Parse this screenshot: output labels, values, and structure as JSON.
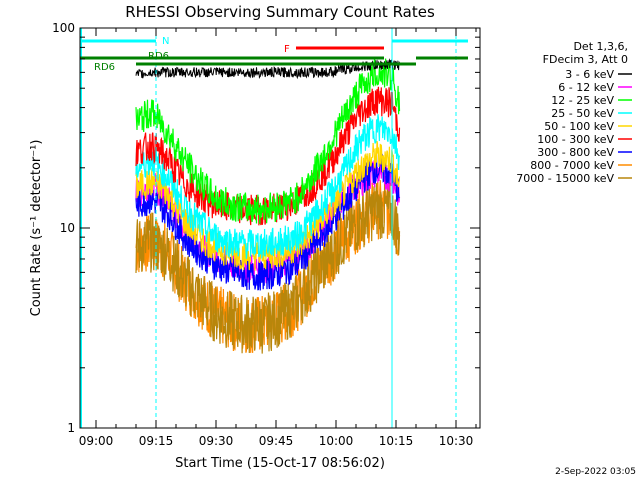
{
  "chart_data": {
    "type": "line",
    "title": "RHESSI Observing Summary Count Rates",
    "xlabel": "Start Time (15-Oct-17 08:56:02)",
    "ylabel": "Count Rate (s⁻¹ detector⁻¹)",
    "y_scale": "log",
    "x_range_minutes": [
      -4,
      36
    ],
    "x_tick_minutes": [
      0,
      15,
      30,
      45,
      60,
      75,
      90
    ],
    "x_tick_labels": [
      "09:00",
      "09:15",
      "09:30",
      "09:45",
      "10:00",
      "10:15",
      "10:30"
    ],
    "ylim": [
      1,
      100
    ],
    "y_tick_values": [
      1,
      10,
      100
    ],
    "y_tick_labels": [
      "1",
      "10",
      "100"
    ],
    "grid": false,
    "legend": {
      "placement": "right",
      "header": [
        "Det 1,3,6,",
        "FDecim 3, Att 0"
      ]
    },
    "data_window": {
      "start": "09:10",
      "end": "10:16"
    },
    "x_time_axis": [
      "09:10",
      "09:14",
      "09:18",
      "09:22",
      "09:26",
      "09:30",
      "09:34",
      "09:38",
      "09:42",
      "09:46",
      "09:50",
      "09:54",
      "09:58",
      "10:02",
      "10:06",
      "10:10",
      "10:14",
      "10:16"
    ],
    "series": [
      {
        "name": "3 - 6 keV",
        "color": "#000000",
        "values": [
          58,
          60,
          60,
          60,
          60,
          60,
          60,
          60,
          60,
          60,
          60,
          60,
          60,
          62,
          64,
          65,
          66,
          64
        ]
      },
      {
        "name": "6 - 12 keV",
        "color": "#ff00ff",
        "values": [
          15,
          16,
          14,
          10,
          8,
          7,
          6.5,
          6.3,
          6.3,
          6.5,
          7,
          8.5,
          11,
          14,
          17,
          19,
          18,
          14
        ]
      },
      {
        "name": "12 - 25 keV",
        "color": "#00ff00",
        "values": [
          34,
          38,
          30,
          22,
          17,
          14,
          13,
          12.5,
          12.5,
          13,
          14,
          18,
          25,
          36,
          50,
          60,
          58,
          40
        ]
      },
      {
        "name": "25 - 50 keV",
        "color": "#00ffff",
        "values": [
          20,
          22,
          18,
          13,
          10.5,
          9,
          8.5,
          8.3,
          8.3,
          8.5,
          9,
          11,
          14,
          19,
          27,
          32,
          30,
          22
        ]
      },
      {
        "name": "50 - 100 keV",
        "color": "#ffd700",
        "values": [
          16,
          17,
          15,
          11,
          9,
          8,
          7.5,
          7.3,
          7.3,
          7.5,
          8,
          9.5,
          12,
          15,
          20,
          23,
          22,
          16
        ]
      },
      {
        "name": "100 - 300 keV",
        "color": "#ff0000",
        "values": [
          24,
          26,
          22,
          17,
          14.5,
          13,
          12.5,
          12.3,
          12.3,
          12.5,
          13.5,
          16,
          20,
          28,
          38,
          44,
          42,
          30
        ]
      },
      {
        "name": "300 - 800 keV",
        "color": "#0000ff",
        "values": [
          13,
          14,
          12,
          9,
          7.5,
          6.5,
          6,
          5.8,
          5.8,
          6,
          6.5,
          8,
          10,
          13,
          17,
          20,
          19,
          14
        ]
      },
      {
        "name": "800 - 7000 keV",
        "color": "#ff8c00",
        "values": [
          8,
          8.5,
          7.5,
          5.5,
          4.5,
          3.7,
          3.4,
          3.3,
          3.3,
          3.6,
          4.2,
          5.5,
          7,
          9,
          11,
          12.5,
          12,
          9
        ]
      },
      {
        "name": "7000 - 15000 keV",
        "color": "#b8860b",
        "values": [
          8,
          8.5,
          7.5,
          5.5,
          4.5,
          3.7,
          3.4,
          3.3,
          3.3,
          3.6,
          4.2,
          5.5,
          7,
          9,
          11,
          12.5,
          12,
          9
        ]
      }
    ],
    "annotations": {
      "night_marker_label": "N",
      "night_bar_color": "#00ffff",
      "night_intervals": [
        [
          "08:56",
          "09:15"
        ],
        [
          "10:14",
          "10:33"
        ]
      ],
      "saa_boundary_times": [
        "09:15",
        "10:30"
      ],
      "dashed_line_color": "#00ffff",
      "flare_label": "F",
      "flare_color": "#ff0000",
      "flare_interval": [
        "09:50",
        "10:12"
      ],
      "rd_labels": [
        "RD6",
        "RD6"
      ],
      "rd_color": "#008000",
      "rd_intervals": [
        [
          "08:56",
          "10:12"
        ],
        [
          "10:20",
          "10:33"
        ]
      ]
    },
    "footer_timestamp": "2-Sep-2022 03:05"
  }
}
